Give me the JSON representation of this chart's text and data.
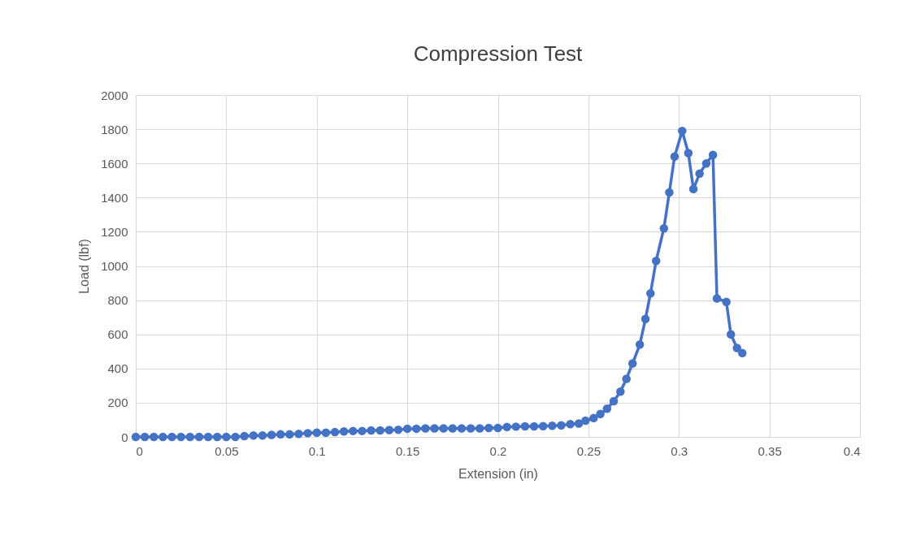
{
  "chart_data": {
    "type": "line",
    "title": "Compression Test",
    "xlabel": "Extension (in)",
    "ylabel": "Load (lbf)",
    "x": [
      0,
      0.005,
      0.01,
      0.015,
      0.02,
      0.025,
      0.03,
      0.035,
      0.04,
      0.045,
      0.05,
      0.055,
      0.06,
      0.065,
      0.07,
      0.075,
      0.08,
      0.085,
      0.09,
      0.095,
      0.1,
      0.105,
      0.11,
      0.115,
      0.12,
      0.125,
      0.13,
      0.135,
      0.14,
      0.145,
      0.15,
      0.155,
      0.16,
      0.165,
      0.17,
      0.175,
      0.18,
      0.185,
      0.19,
      0.195,
      0.2,
      0.205,
      0.21,
      0.215,
      0.22,
      0.225,
      0.23,
      0.235,
      0.24,
      0.2447,
      0.2484,
      0.2529,
      0.2566,
      0.2603,
      0.264,
      0.2677,
      0.271,
      0.2744,
      0.2784,
      0.2815,
      0.2843,
      0.2874,
      0.2917,
      0.2947,
      0.2976,
      0.3018,
      0.3052,
      0.308,
      0.3114,
      0.3151,
      0.3188,
      0.321,
      0.3262,
      0.3287,
      0.3321,
      0.335
    ],
    "series": [
      {
        "color": "#4472c4",
        "values": [
          0,
          0,
          0,
          0,
          0,
          0,
          0,
          0,
          0,
          0,
          0,
          0,
          5,
          8,
          8,
          12,
          15,
          15,
          18,
          22,
          25,
          25,
          28,
          32,
          35,
          35,
          38,
          38,
          40,
          42,
          48,
          48,
          50,
          50,
          50,
          50,
          50,
          50,
          50,
          52,
          52,
          58,
          60,
          62,
          62,
          63,
          65,
          68,
          75,
          78,
          95,
          110,
          134,
          165,
          209,
          265,
          340,
          430,
          540,
          690,
          840,
          1030,
          1220,
          1430,
          1640,
          1790,
          1660,
          1450,
          1540,
          1600,
          1650,
          810,
          790,
          600,
          520,
          490
        ]
      }
    ],
    "xlim": [
      0,
      0.4
    ],
    "xticks": [
      0,
      0.05,
      0.1,
      0.15,
      0.2,
      0.25,
      0.3,
      0.35,
      0.4
    ],
    "ylim": [
      0,
      2000
    ],
    "yticks": [
      0,
      200,
      400,
      600,
      800,
      1000,
      1200,
      1400,
      1600,
      1800,
      2000
    ],
    "grid": true,
    "legend": false,
    "marker": "circle",
    "line_style": "solid"
  }
}
